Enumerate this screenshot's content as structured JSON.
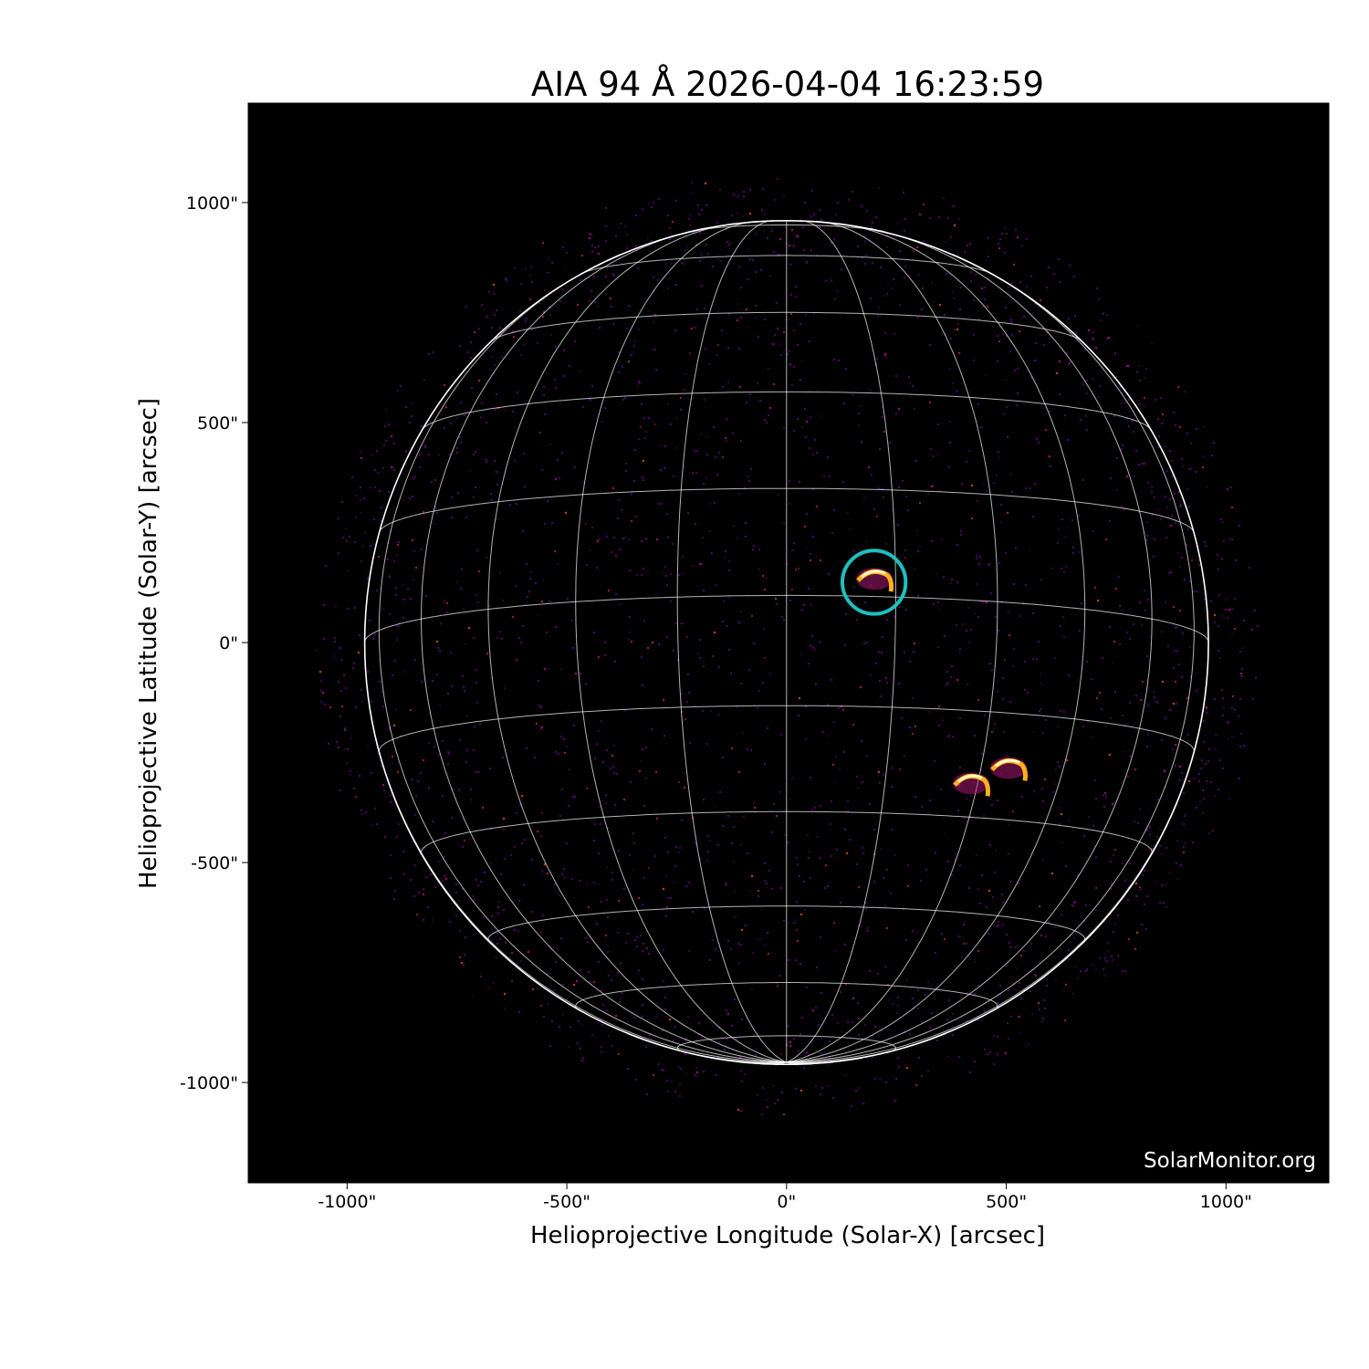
{
  "chart_data": {
    "type": "image",
    "title": "AIA 94 Å 2026-04-04 16:23:59",
    "xlabel": "Helioprojective Longitude (Solar-X) [arcsec]",
    "ylabel": "Helioprojective Latitude (Solar-Y) [arcsec]",
    "xlim": [
      -1225,
      1234
    ],
    "ylim": [
      -1228,
      1226
    ],
    "xticks": [
      {
        "value": -1000,
        "label": "-1000\""
      },
      {
        "value": -500,
        "label": "-500\""
      },
      {
        "value": 0,
        "label": "0\""
      },
      {
        "value": 500,
        "label": "500\""
      },
      {
        "value": 1000,
        "label": "1000\""
      }
    ],
    "yticks": [
      {
        "value": 1000,
        "label": "1000\""
      },
      {
        "value": 500,
        "label": "500\""
      },
      {
        "value": 0,
        "label": "0\""
      },
      {
        "value": -500,
        "label": "-500\""
      },
      {
        "value": -1000,
        "label": "-1000\""
      }
    ],
    "solar_radius_arcsec": 960,
    "grid": {
      "visible": true,
      "spacing_deg": 15,
      "b0_deg": -6.4,
      "color": "#ffffff"
    },
    "background_color": "#000000",
    "colormap_colors": [
      "#000000",
      "#5a0a7a",
      "#b5197a",
      "#e8542a",
      "#ffb020",
      "#ffffc0"
    ],
    "highlight_circle": {
      "center": [
        199,
        137
      ],
      "radius": 72,
      "color": "#1fbfbf"
    },
    "bright_regions": [
      {
        "center": [
          200,
          145
        ]
      },
      {
        "center": [
          505,
          -285
        ]
      },
      {
        "center": [
          420,
          -320
        ]
      }
    ],
    "watermark": "SolarMonitor.org"
  }
}
